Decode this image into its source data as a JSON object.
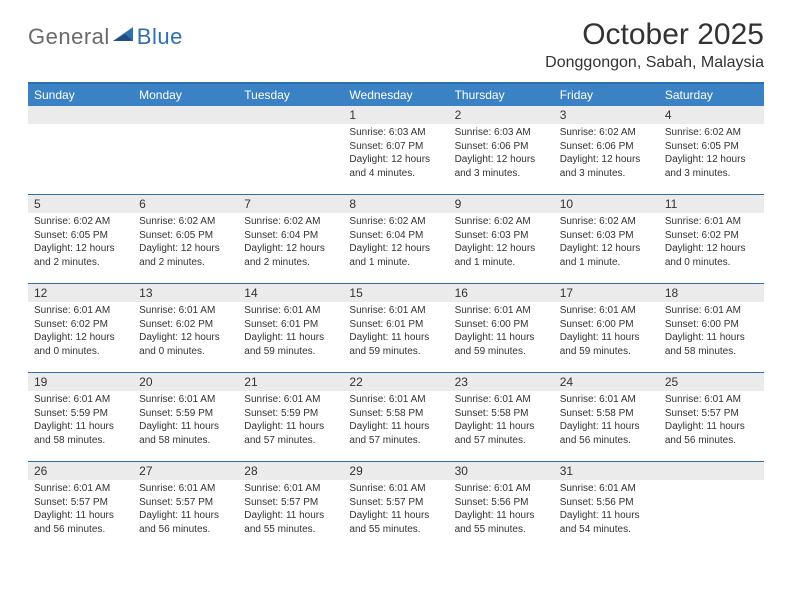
{
  "logo": {
    "text1": "General",
    "text2": "Blue"
  },
  "title": "October 2025",
  "location": "Donggongon, Sabah, Malaysia",
  "colors": {
    "header_bg": "#3b82c4",
    "border": "#2f6fb0",
    "daynum_bg": "#ebebeb",
    "text": "#333333",
    "logo_gray": "#6a6a6a",
    "logo_blue": "#2f6fb0",
    "background": "#ffffff"
  },
  "fonts": {
    "title_size": 30,
    "location_size": 16,
    "dayheader_size": 12,
    "daynum_size": 12,
    "body_size": 10
  },
  "day_headers": [
    "Sunday",
    "Monday",
    "Tuesday",
    "Wednesday",
    "Thursday",
    "Friday",
    "Saturday"
  ],
  "weeks": [
    [
      {
        "num": "",
        "lines": []
      },
      {
        "num": "",
        "lines": []
      },
      {
        "num": "",
        "lines": []
      },
      {
        "num": "1",
        "lines": [
          "Sunrise: 6:03 AM",
          "Sunset: 6:07 PM",
          "Daylight: 12 hours and 4 minutes."
        ]
      },
      {
        "num": "2",
        "lines": [
          "Sunrise: 6:03 AM",
          "Sunset: 6:06 PM",
          "Daylight: 12 hours and 3 minutes."
        ]
      },
      {
        "num": "3",
        "lines": [
          "Sunrise: 6:02 AM",
          "Sunset: 6:06 PM",
          "Daylight: 12 hours and 3 minutes."
        ]
      },
      {
        "num": "4",
        "lines": [
          "Sunrise: 6:02 AM",
          "Sunset: 6:05 PM",
          "Daylight: 12 hours and 3 minutes."
        ]
      }
    ],
    [
      {
        "num": "5",
        "lines": [
          "Sunrise: 6:02 AM",
          "Sunset: 6:05 PM",
          "Daylight: 12 hours and 2 minutes."
        ]
      },
      {
        "num": "6",
        "lines": [
          "Sunrise: 6:02 AM",
          "Sunset: 6:05 PM",
          "Daylight: 12 hours and 2 minutes."
        ]
      },
      {
        "num": "7",
        "lines": [
          "Sunrise: 6:02 AM",
          "Sunset: 6:04 PM",
          "Daylight: 12 hours and 2 minutes."
        ]
      },
      {
        "num": "8",
        "lines": [
          "Sunrise: 6:02 AM",
          "Sunset: 6:04 PM",
          "Daylight: 12 hours and 1 minute."
        ]
      },
      {
        "num": "9",
        "lines": [
          "Sunrise: 6:02 AM",
          "Sunset: 6:03 PM",
          "Daylight: 12 hours and 1 minute."
        ]
      },
      {
        "num": "10",
        "lines": [
          "Sunrise: 6:02 AM",
          "Sunset: 6:03 PM",
          "Daylight: 12 hours and 1 minute."
        ]
      },
      {
        "num": "11",
        "lines": [
          "Sunrise: 6:01 AM",
          "Sunset: 6:02 PM",
          "Daylight: 12 hours and 0 minutes."
        ]
      }
    ],
    [
      {
        "num": "12",
        "lines": [
          "Sunrise: 6:01 AM",
          "Sunset: 6:02 PM",
          "Daylight: 12 hours and 0 minutes."
        ]
      },
      {
        "num": "13",
        "lines": [
          "Sunrise: 6:01 AM",
          "Sunset: 6:02 PM",
          "Daylight: 12 hours and 0 minutes."
        ]
      },
      {
        "num": "14",
        "lines": [
          "Sunrise: 6:01 AM",
          "Sunset: 6:01 PM",
          "Daylight: 11 hours and 59 minutes."
        ]
      },
      {
        "num": "15",
        "lines": [
          "Sunrise: 6:01 AM",
          "Sunset: 6:01 PM",
          "Daylight: 11 hours and 59 minutes."
        ]
      },
      {
        "num": "16",
        "lines": [
          "Sunrise: 6:01 AM",
          "Sunset: 6:00 PM",
          "Daylight: 11 hours and 59 minutes."
        ]
      },
      {
        "num": "17",
        "lines": [
          "Sunrise: 6:01 AM",
          "Sunset: 6:00 PM",
          "Daylight: 11 hours and 59 minutes."
        ]
      },
      {
        "num": "18",
        "lines": [
          "Sunrise: 6:01 AM",
          "Sunset: 6:00 PM",
          "Daylight: 11 hours and 58 minutes."
        ]
      }
    ],
    [
      {
        "num": "19",
        "lines": [
          "Sunrise: 6:01 AM",
          "Sunset: 5:59 PM",
          "Daylight: 11 hours and 58 minutes."
        ]
      },
      {
        "num": "20",
        "lines": [
          "Sunrise: 6:01 AM",
          "Sunset: 5:59 PM",
          "Daylight: 11 hours and 58 minutes."
        ]
      },
      {
        "num": "21",
        "lines": [
          "Sunrise: 6:01 AM",
          "Sunset: 5:59 PM",
          "Daylight: 11 hours and 57 minutes."
        ]
      },
      {
        "num": "22",
        "lines": [
          "Sunrise: 6:01 AM",
          "Sunset: 5:58 PM",
          "Daylight: 11 hours and 57 minutes."
        ]
      },
      {
        "num": "23",
        "lines": [
          "Sunrise: 6:01 AM",
          "Sunset: 5:58 PM",
          "Daylight: 11 hours and 57 minutes."
        ]
      },
      {
        "num": "24",
        "lines": [
          "Sunrise: 6:01 AM",
          "Sunset: 5:58 PM",
          "Daylight: 11 hours and 56 minutes."
        ]
      },
      {
        "num": "25",
        "lines": [
          "Sunrise: 6:01 AM",
          "Sunset: 5:57 PM",
          "Daylight: 11 hours and 56 minutes."
        ]
      }
    ],
    [
      {
        "num": "26",
        "lines": [
          "Sunrise: 6:01 AM",
          "Sunset: 5:57 PM",
          "Daylight: 11 hours and 56 minutes."
        ]
      },
      {
        "num": "27",
        "lines": [
          "Sunrise: 6:01 AM",
          "Sunset: 5:57 PM",
          "Daylight: 11 hours and 56 minutes."
        ]
      },
      {
        "num": "28",
        "lines": [
          "Sunrise: 6:01 AM",
          "Sunset: 5:57 PM",
          "Daylight: 11 hours and 55 minutes."
        ]
      },
      {
        "num": "29",
        "lines": [
          "Sunrise: 6:01 AM",
          "Sunset: 5:57 PM",
          "Daylight: 11 hours and 55 minutes."
        ]
      },
      {
        "num": "30",
        "lines": [
          "Sunrise: 6:01 AM",
          "Sunset: 5:56 PM",
          "Daylight: 11 hours and 55 minutes."
        ]
      },
      {
        "num": "31",
        "lines": [
          "Sunrise: 6:01 AM",
          "Sunset: 5:56 PM",
          "Daylight: 11 hours and 54 minutes."
        ]
      },
      {
        "num": "",
        "lines": []
      }
    ]
  ]
}
